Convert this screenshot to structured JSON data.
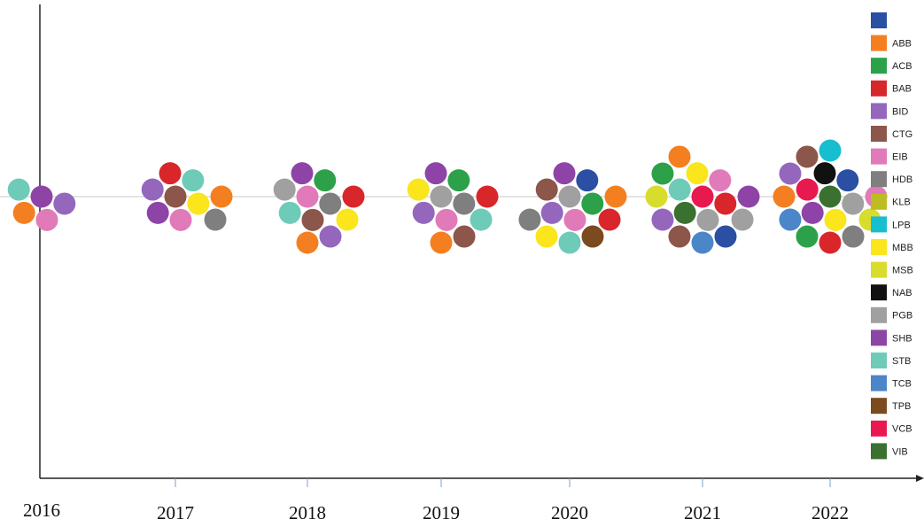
{
  "chart_data": {
    "type": "beeswarm",
    "categories": [
      "2016",
      "2017",
      "2018",
      "2019",
      "2020",
      "2021",
      "2022"
    ],
    "series": [
      {
        "name": null,
        "color": "#2a4fa3"
      },
      {
        "name": "ABB",
        "color": "#f47f20"
      },
      {
        "name": "ACB",
        "color": "#2ca14a"
      },
      {
        "name": "BAB",
        "color": "#d8262b"
      },
      {
        "name": "BID",
        "color": "#9467bd"
      },
      {
        "name": "CTG",
        "color": "#8c564b"
      },
      {
        "name": "EIB",
        "color": "#e07ab8"
      },
      {
        "name": "HDB",
        "color": "#7f7f7f"
      },
      {
        "name": "KLB",
        "color": "#bcbd22"
      },
      {
        "name": "LPB",
        "color": "#17becf"
      },
      {
        "name": "MBB",
        "color": "#fbe51c"
      },
      {
        "name": "MSB",
        "color": "#d8dc2c"
      },
      {
        "name": "NAB",
        "color": "#111111"
      },
      {
        "name": "PGB",
        "color": "#a0a0a0"
      },
      {
        "name": "SHB",
        "color": "#8e44a6"
      },
      {
        "name": "STB",
        "color": "#6ecbb8"
      },
      {
        "name": "TCB",
        "color": "#4a86c8"
      },
      {
        "name": "TPB",
        "color": "#7b4a1e"
      },
      {
        "name": "VCB",
        "color": "#e8194f"
      },
      {
        "name": "VIB",
        "color": "#3a7030"
      }
    ],
    "groups": [
      [
        "SHB",
        "BID",
        "EIB",
        "ABB",
        "STB"
      ],
      [
        "CTG",
        "MBB",
        "EIB",
        "SHB",
        "BID",
        "BAB",
        "STB",
        "ABB",
        "HDB"
      ],
      [
        "EIB",
        "HDB",
        "CTG",
        "STB",
        "PGB",
        "SHB",
        "ACB",
        "BAB",
        "MBB",
        "BID",
        "ABB"
      ],
      [
        "PGB",
        "HDB",
        "EIB",
        "BID",
        "MBB",
        "SHB",
        "ACB",
        "BAB",
        "STB",
        "CTG",
        "ABB"
      ],
      [
        "PGB",
        "ACB",
        "EIB",
        "BID",
        "CTG",
        "SHB",
        "null",
        "ABB",
        "BAB",
        "TPB",
        "STB",
        "MBB",
        "HDB"
      ],
      [
        "VCB",
        "BAB",
        "PGB",
        "VIB",
        "STB",
        "MBB",
        "EIB",
        "SHB",
        "PGB",
        "null",
        "TCB",
        "CTG",
        "BID",
        "MSB",
        "ACB",
        "ABB"
      ],
      [
        "VIB",
        "PGB",
        "MBB",
        "SHB",
        "VCB",
        "NAB",
        "null",
        "EIB",
        "MSB",
        "HDB",
        "BAB",
        "ACB",
        "TCB",
        "ABB",
        "BID",
        "CTG",
        "LPB"
      ]
    ]
  }
}
